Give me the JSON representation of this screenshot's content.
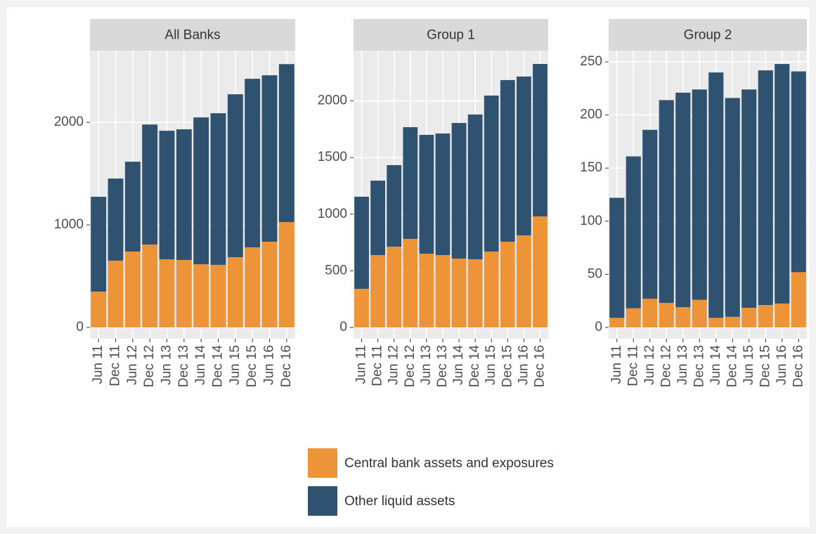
{
  "chart_data": {
    "type": "stacked-bar",
    "categories": [
      "Jun 11",
      "Dec 11",
      "Jun 12",
      "Dec 12",
      "Jun 13",
      "Dec 13",
      "Jun 14",
      "Dec 14",
      "Jun 15",
      "Dec 15",
      "Jun 16",
      "Dec 16"
    ],
    "legend": [
      {
        "name": "Central bank assets and exposures",
        "color": "#ec9437"
      },
      {
        "name": "Other liquid assets",
        "color": "#2e5270"
      }
    ],
    "grid": true,
    "panels": [
      {
        "title": "All Banks",
        "ylim": [
          -110,
          2700
        ],
        "yticks": [
          0,
          1000,
          2000
        ],
        "series": [
          {
            "values": [
              349,
              651,
              740,
              808,
              664,
              658,
              616,
              610,
              685,
              781,
              836,
              1027
            ]
          },
          {
            "values": [
              925,
              801,
              876,
              1171,
              1254,
              1274,
              1432,
              1479,
              1589,
              1644,
              1623,
              1541
            ]
          }
        ]
      },
      {
        "title": "Group 1",
        "ylim": [
          -99,
          2444
        ],
        "yticks": [
          0,
          500,
          1000,
          1500,
          2000
        ],
        "series": [
          {
            "values": [
              341,
              639,
              713,
              782,
              651,
              639,
              608,
              602,
              670,
              757,
              813,
              980
            ]
          },
          {
            "values": [
              813,
              657,
              720,
              986,
              1049,
              1073,
              1197,
              1278,
              1377,
              1427,
              1402,
              1346
            ]
          }
        ]
      },
      {
        "title": "Group 2",
        "ylim": [
          -10.6,
          260.6
        ],
        "yticks": [
          0,
          50,
          100,
          150,
          200,
          250
        ],
        "series": [
          {
            "values": [
              9,
              18,
              27,
              23,
              19,
              26,
              9,
              10,
              18.5,
              21,
              22.5,
              52
            ]
          },
          {
            "values": [
              113,
              143,
              159,
              191,
              202,
              198,
              231,
              206,
              205.5,
              221,
              225.5,
              189
            ]
          }
        ]
      }
    ]
  }
}
